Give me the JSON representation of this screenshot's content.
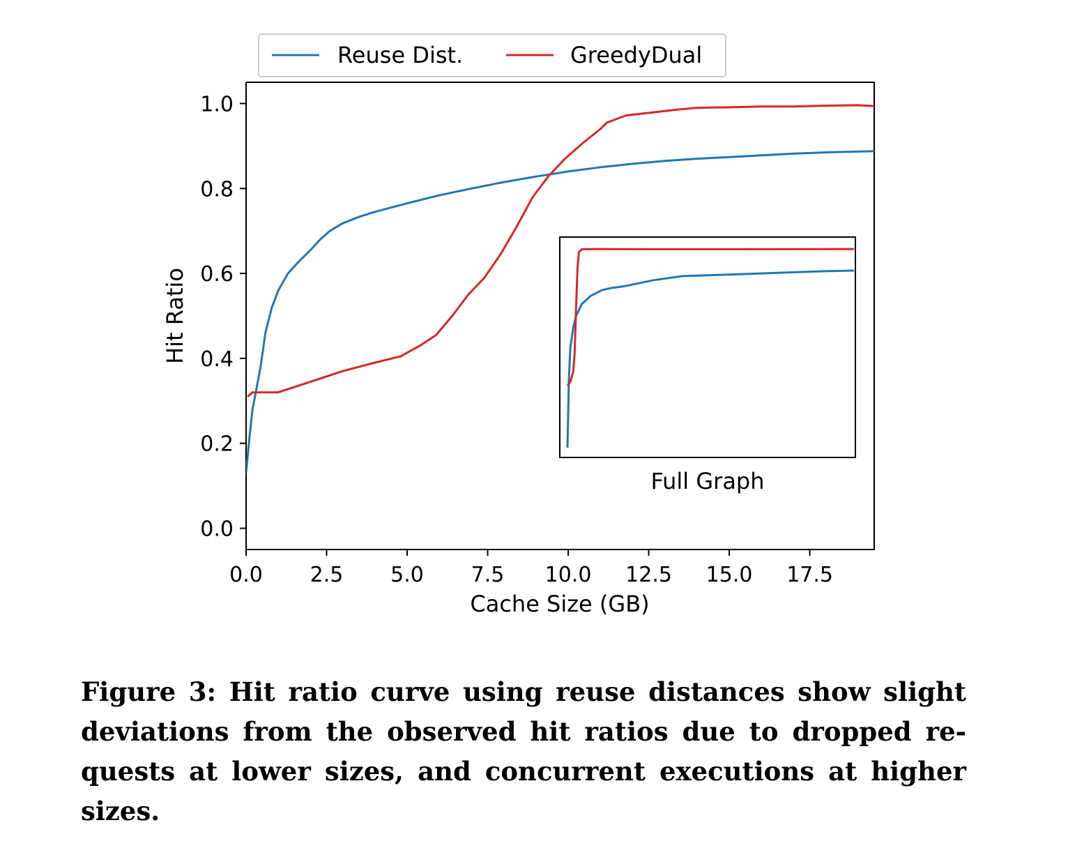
{
  "chart_data": {
    "type": "line",
    "xlabel": "Cache Size (GB)",
    "ylabel": "Hit Ratio",
    "xlim": [
      0,
      19.5
    ],
    "ylim": [
      -0.05,
      1.05
    ],
    "xticks": [
      "0.0",
      "2.5",
      "5.0",
      "7.5",
      "10.0",
      "12.5",
      "15.0",
      "17.5"
    ],
    "yticks": [
      "0.0",
      "0.2",
      "0.4",
      "0.6",
      "0.8",
      "1.0"
    ],
    "legend": "top, outside",
    "grid": false,
    "series": [
      {
        "name": "Reuse Dist.",
        "color": "#1f77b4",
        "x": [
          0,
          0.1,
          0.2,
          0.3,
          0.45,
          0.6,
          0.8,
          1.0,
          1.3,
          1.6,
          2.0,
          2.3,
          2.6,
          3.0,
          3.5,
          4.0,
          4.5,
          5.0,
          6.0,
          7.0,
          8.0,
          9.0,
          10.0,
          11.0,
          12.0,
          13.0,
          14.0,
          15.0,
          16.0,
          17.0,
          18.0,
          19.5
        ],
        "y": [
          0.13,
          0.21,
          0.28,
          0.32,
          0.38,
          0.46,
          0.52,
          0.56,
          0.6,
          0.625,
          0.655,
          0.68,
          0.7,
          0.718,
          0.733,
          0.745,
          0.755,
          0.765,
          0.784,
          0.8,
          0.815,
          0.828,
          0.84,
          0.85,
          0.858,
          0.865,
          0.87,
          0.874,
          0.878,
          0.882,
          0.885,
          0.888
        ]
      },
      {
        "name": "GreedyDual",
        "color": "#d62728",
        "x": [
          0.05,
          0.2,
          0.5,
          1.0,
          2.0,
          3.0,
          4.0,
          4.8,
          5.4,
          5.9,
          6.4,
          6.9,
          7.4,
          7.9,
          8.4,
          8.9,
          9.4,
          9.9,
          10.5,
          11.0,
          11.2,
          11.8,
          12.5,
          13.3,
          14.0,
          15.0,
          16.0,
          17.0,
          18.0,
          19.0,
          19.5
        ],
        "y": [
          0.31,
          0.32,
          0.32,
          0.32,
          0.345,
          0.37,
          0.39,
          0.405,
          0.43,
          0.455,
          0.5,
          0.55,
          0.59,
          0.645,
          0.71,
          0.78,
          0.83,
          0.87,
          0.91,
          0.94,
          0.955,
          0.972,
          0.978,
          0.985,
          0.99,
          0.991,
          0.993,
          0.993,
          0.995,
          0.996,
          0.994
        ]
      }
    ],
    "inset": {
      "label": "Full Graph",
      "series": [
        {
          "name": "Reuse Dist.",
          "x": [
            0,
            0.005,
            0.01,
            0.02,
            0.03,
            0.05,
            0.08,
            0.12,
            0.15,
            0.2,
            0.3,
            0.4,
            0.5,
            0.6,
            0.7,
            0.8,
            0.9,
            1.0
          ],
          "y": [
            0.0,
            0.35,
            0.5,
            0.6,
            0.66,
            0.72,
            0.76,
            0.79,
            0.8,
            0.81,
            0.84,
            0.86,
            0.865,
            0.87,
            0.875,
            0.88,
            0.885,
            0.888
          ]
        },
        {
          "name": "GreedyDual",
          "x": [
            0,
            0.01,
            0.02,
            0.025,
            0.03,
            0.035,
            0.04,
            0.05,
            0.1,
            0.3,
            0.6,
            1.0
          ],
          "y": [
            0.31,
            0.33,
            0.38,
            0.47,
            0.7,
            0.9,
            0.98,
            0.995,
            0.996,
            0.995,
            0.995,
            0.996
          ]
        }
      ]
    }
  },
  "caption": "Figure 3: Hit ratio curve using reuse distances show slight deviations from the observed hit ratios due to dropped re­quests at lower sizes, and concurrent executions at higher sizes."
}
